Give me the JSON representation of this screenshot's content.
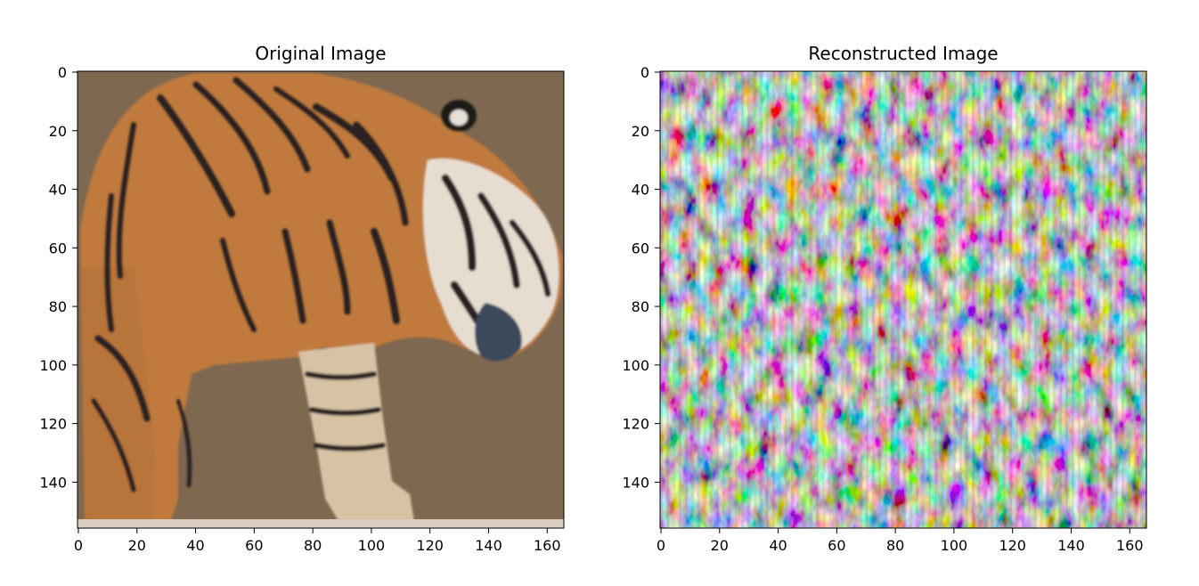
{
  "chart_data": [
    {
      "type": "image",
      "title": "Original Image",
      "xlabel": "",
      "ylabel": "",
      "xlim": [
        0,
        166
      ],
      "ylim": [
        156,
        0
      ],
      "x_ticks": [
        0,
        20,
        40,
        60,
        80,
        100,
        120,
        140,
        160
      ],
      "y_ticks": [
        0,
        20,
        40,
        60,
        80,
        100,
        120,
        140
      ],
      "x_tick_labels": [
        "0",
        "20",
        "40",
        "60",
        "80",
        "100",
        "120",
        "140",
        "160"
      ],
      "y_tick_labels": [
        "0",
        "20",
        "40",
        "60",
        "80",
        "100",
        "120",
        "140"
      ],
      "content": "tiger",
      "colors": {
        "background": "#7f6850",
        "fur": "#c07a3c",
        "stripe": "#2a2420",
        "white_fur": "#e8e2d8"
      }
    },
    {
      "type": "image",
      "title": "Reconstructed Image",
      "xlabel": "",
      "ylabel": "",
      "xlim": [
        0,
        166
      ],
      "ylim": [
        156,
        0
      ],
      "x_ticks": [
        0,
        20,
        40,
        60,
        80,
        100,
        120,
        140,
        160
      ],
      "y_ticks": [
        0,
        20,
        40,
        60,
        80,
        100,
        120,
        140
      ],
      "x_tick_labels": [
        "0",
        "20",
        "40",
        "60",
        "80",
        "100",
        "120",
        "140",
        "160"
      ],
      "y_tick_labels": [
        "0",
        "20",
        "40",
        "60",
        "80",
        "100",
        "120",
        "140"
      ],
      "content": "color noise",
      "colors": [
        "#8c9b4a",
        "#b0457a",
        "#4f7fb0",
        "#6fb04f",
        "#c7653c",
        "#8e62b4",
        "#5aa89a",
        "#a8a64c"
      ]
    }
  ]
}
